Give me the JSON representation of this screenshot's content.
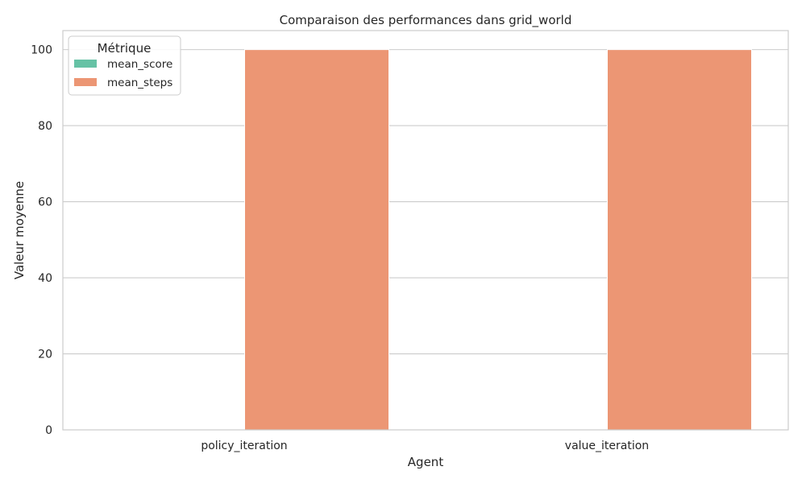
{
  "chart_data": {
    "type": "bar",
    "title": "Comparaison des performances dans grid_world",
    "xlabel": "Agent",
    "ylabel": "Valeur moyenne",
    "categories": [
      "policy_iteration",
      "value_iteration"
    ],
    "series": [
      {
        "name": "mean_score",
        "values": [
          0,
          0
        ],
        "color": "#66c2a5"
      },
      {
        "name": "mean_steps",
        "values": [
          100,
          100
        ],
        "color": "#ec9674"
      }
    ],
    "ylim": [
      0,
      105
    ],
    "yticks": [
      0,
      20,
      40,
      60,
      80,
      100
    ],
    "grid": true,
    "legend": {
      "title": "Métrique",
      "placement": "top-left"
    }
  }
}
